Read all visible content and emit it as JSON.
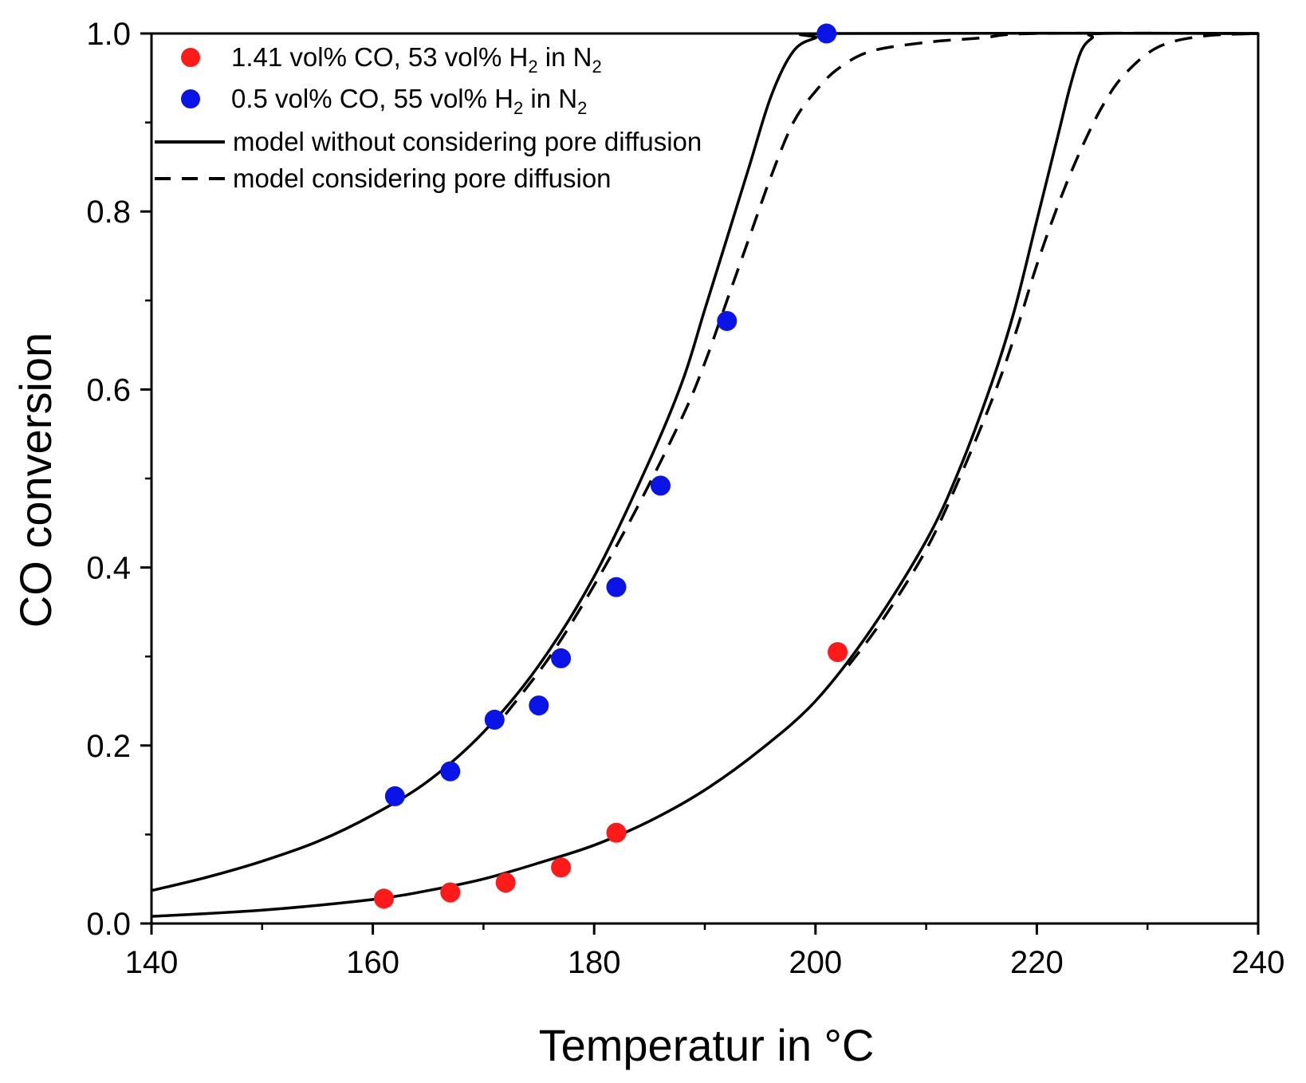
{
  "chart_data": {
    "type": "scatter",
    "xlabel": "Temperatur in °C",
    "ylabel": "CO conversion",
    "xlim": [
      140,
      240
    ],
    "ylim": [
      0.0,
      1.0
    ],
    "x_ticks": [
      "140",
      "160",
      "180",
      "200",
      "220",
      "240"
    ],
    "y_ticks": [
      "0.0",
      "0.2",
      "0.4",
      "0.6",
      "0.8",
      "1.0"
    ],
    "grid": false,
    "legend_position": "top-left",
    "legend": {
      "red_prefix": "1.41 vol% CO, 53 vol% H",
      "red_mid": " in N",
      "blue_prefix": "0.5 vol% CO, 55 vol% H",
      "blue_mid": " in N",
      "subscript": "2",
      "solid": "model without considering pore diffusion",
      "dashed": "model considering pore diffusion"
    },
    "series": [
      {
        "name": "1.41 vol% CO, 53 vol% H2 in N2",
        "kind": "scatter",
        "color": "#ff1a1a",
        "points": [
          [
            161,
            0.028
          ],
          [
            167,
            0.035
          ],
          [
            172,
            0.046
          ],
          [
            177,
            0.063
          ],
          [
            182,
            0.102
          ],
          [
            202,
            0.305
          ]
        ]
      },
      {
        "name": "0.5 vol% CO, 55 vol% H2 in N2",
        "kind": "scatter",
        "color": "#0a14e6",
        "points": [
          [
            162,
            0.143
          ],
          [
            167,
            0.171
          ],
          [
            171,
            0.229
          ],
          [
            175,
            0.245
          ],
          [
            177,
            0.298
          ],
          [
            182,
            0.378
          ],
          [
            186,
            0.492
          ],
          [
            192,
            0.677
          ],
          [
            201,
            1.0
          ]
        ]
      },
      {
        "name": "model without considering pore diffusion (0.5 vol% CO)",
        "kind": "line",
        "style": "solid",
        "color": "#000000",
        "points": [
          [
            140,
            0.037
          ],
          [
            145,
            0.052
          ],
          [
            150,
            0.07
          ],
          [
            155,
            0.092
          ],
          [
            160,
            0.122
          ],
          [
            165,
            0.16
          ],
          [
            170,
            0.215
          ],
          [
            175,
            0.29
          ],
          [
            180,
            0.39
          ],
          [
            185,
            0.52
          ],
          [
            188,
            0.61
          ],
          [
            190,
            0.69
          ],
          [
            192,
            0.77
          ],
          [
            194,
            0.85
          ],
          [
            196,
            0.93
          ],
          [
            198,
            0.98
          ],
          [
            200,
            0.995
          ],
          [
            202,
            1.0
          ],
          [
            240,
            1.0
          ]
        ]
      },
      {
        "name": "model considering pore diffusion (0.5 vol% CO)",
        "kind": "line",
        "style": "dashed",
        "color": "#000000",
        "points": [
          [
            172,
            0.235
          ],
          [
            176,
            0.3
          ],
          [
            180,
            0.38
          ],
          [
            184,
            0.47
          ],
          [
            188,
            0.57
          ],
          [
            190,
            0.63
          ],
          [
            192,
            0.7
          ],
          [
            194,
            0.77
          ],
          [
            196,
            0.84
          ],
          [
            198,
            0.9
          ],
          [
            200,
            0.935
          ],
          [
            202,
            0.96
          ],
          [
            205,
            0.98
          ],
          [
            210,
            0.99
          ],
          [
            215,
            0.995
          ],
          [
            220,
            1.0
          ],
          [
            240,
            1.0
          ]
        ]
      },
      {
        "name": "model without considering pore diffusion (1.41 vol% CO)",
        "kind": "line",
        "style": "solid",
        "color": "#000000",
        "points": [
          [
            140,
            0.008
          ],
          [
            150,
            0.015
          ],
          [
            160,
            0.027
          ],
          [
            165,
            0.037
          ],
          [
            170,
            0.05
          ],
          [
            175,
            0.068
          ],
          [
            180,
            0.088
          ],
          [
            185,
            0.115
          ],
          [
            190,
            0.15
          ],
          [
            195,
            0.195
          ],
          [
            200,
            0.25
          ],
          [
            205,
            0.33
          ],
          [
            210,
            0.43
          ],
          [
            213,
            0.51
          ],
          [
            216,
            0.61
          ],
          [
            218,
            0.69
          ],
          [
            220,
            0.79
          ],
          [
            222,
            0.89
          ],
          [
            223,
            0.94
          ],
          [
            224,
            0.98
          ],
          [
            225,
            0.995
          ],
          [
            226,
            1.0
          ],
          [
            240,
            1.0
          ]
        ]
      },
      {
        "name": "model considering pore diffusion (1.41 vol% CO)",
        "kind": "line",
        "style": "dashed",
        "color": "#000000",
        "points": [
          [
            203,
            0.29
          ],
          [
            206,
            0.34
          ],
          [
            210,
            0.42
          ],
          [
            213,
            0.5
          ],
          [
            216,
            0.59
          ],
          [
            218,
            0.66
          ],
          [
            220,
            0.74
          ],
          [
            222,
            0.81
          ],
          [
            224,
            0.87
          ],
          [
            226,
            0.92
          ],
          [
            228,
            0.955
          ],
          [
            231,
            0.985
          ],
          [
            235,
            0.997
          ],
          [
            240,
            1.0
          ]
        ]
      }
    ]
  }
}
